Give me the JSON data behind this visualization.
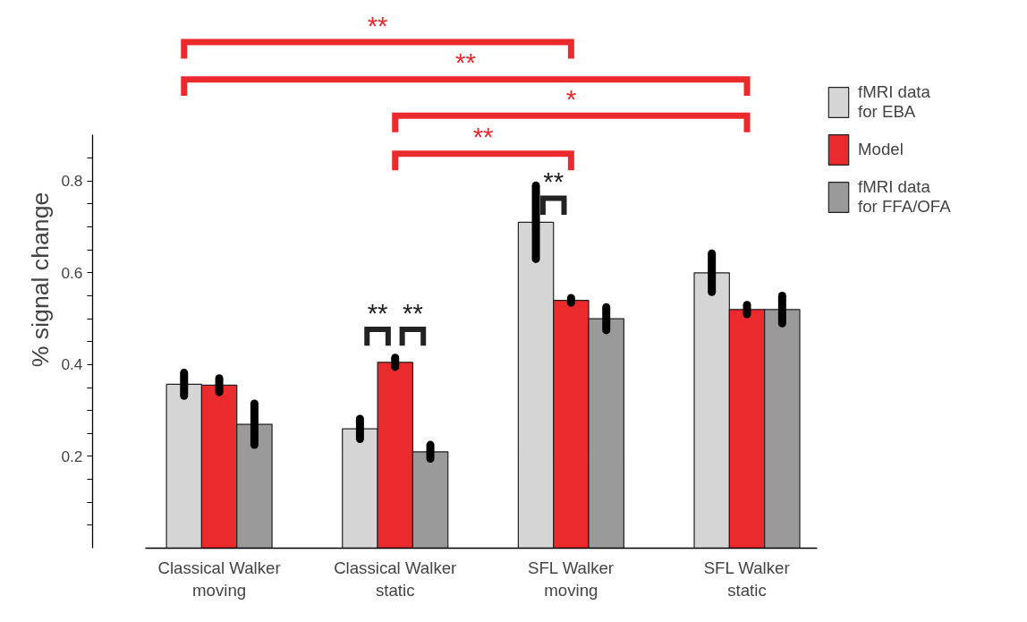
{
  "chart_data": {
    "type": "bar",
    "ylabel": "% signal change",
    "categories": [
      "Classical Walker\nmoving",
      "Classical Walker\nstatic",
      "SFL Walker\nmoving",
      "SFL Walker\nstatic"
    ],
    "series": [
      {
        "name": "fMRI data\nfor EBA",
        "color": "#d6d6d6",
        "values": [
          0.357,
          0.26,
          0.71,
          0.6
        ],
        "errors": [
          0.025,
          0.022,
          0.08,
          0.042
        ]
      },
      {
        "name": "Model",
        "color": "#eb2a2e",
        "values": [
          0.355,
          0.405,
          0.54,
          0.52
        ],
        "errors": [
          0.015,
          0.01,
          0.005,
          0.01
        ]
      },
      {
        "name": "fMRI data\nfor FFA/OFA",
        "color": "#9a9a9a",
        "values": [
          0.27,
          0.21,
          0.5,
          0.52
        ],
        "errors": [
          0.045,
          0.015,
          0.025,
          0.03
        ]
      }
    ],
    "ylim": [
      0,
      0.9
    ],
    "yticks": [
      0.2,
      0.4,
      0.6,
      0.8
    ],
    "annotations": [
      "**",
      "**",
      "*",
      "**",
      "**",
      "**",
      "**"
    ],
    "legend": "right",
    "grid": false
  }
}
